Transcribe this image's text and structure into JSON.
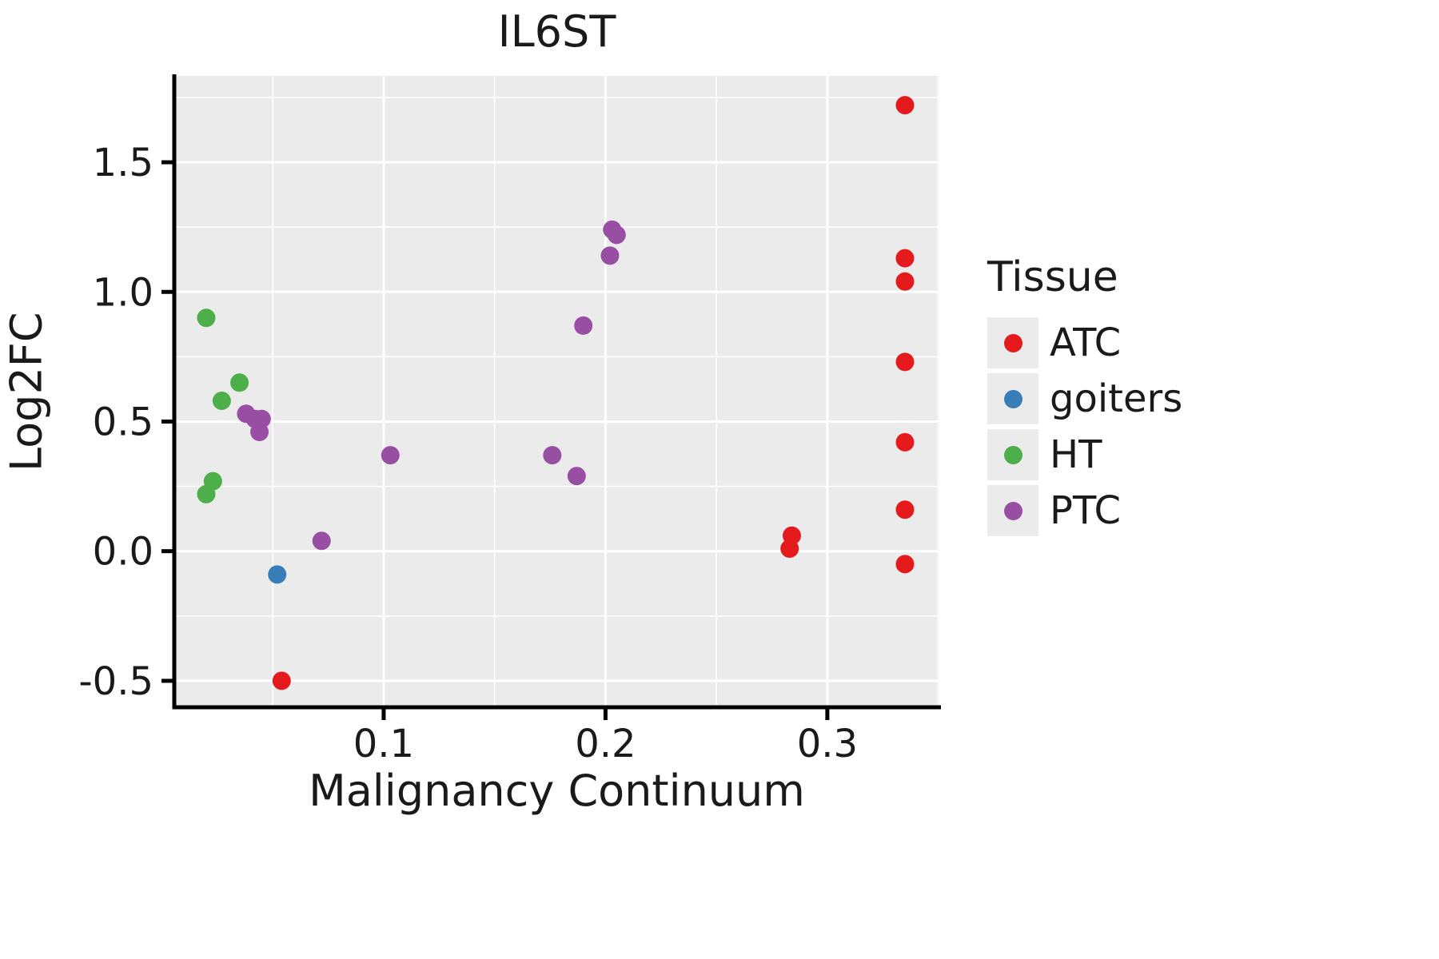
{
  "title": "IL6ST",
  "style": {
    "panel_bg": "#EBEBEB",
    "grid_color": "#FFFFFF",
    "axis_color": "#000000",
    "text_color": "#1A1A1A",
    "legend_key_bg": "#EBEBEB"
  },
  "chart_data": {
    "type": "scatter",
    "title": "IL6ST",
    "xlabel": "Malignancy Continuum",
    "ylabel": "Log2FC",
    "legend_title": "Tissue",
    "legend_position": "right",
    "grid": true,
    "xlim": [
      0.0056,
      0.3505
    ],
    "ylim": [
      -0.602,
      1.833
    ],
    "x_ticks": [
      0.1,
      0.2,
      0.3
    ],
    "y_ticks": [
      -0.5,
      0.0,
      0.5,
      1.0,
      1.5
    ],
    "x_minor_ticks": [
      0.05,
      0.15,
      0.25,
      0.35
    ],
    "y_minor_ticks": [
      -0.25,
      0.25,
      0.75,
      1.25,
      1.75
    ],
    "series": [
      {
        "name": "ATC",
        "color": "#E41A1C",
        "points": [
          [
            0.335,
            1.72
          ],
          [
            0.335,
            1.13
          ],
          [
            0.335,
            1.04
          ],
          [
            0.335,
            0.73
          ],
          [
            0.335,
            0.42
          ],
          [
            0.335,
            0.16
          ],
          [
            0.335,
            -0.05
          ],
          [
            0.284,
            0.06
          ],
          [
            0.283,
            0.01
          ],
          [
            0.054,
            -0.5
          ]
        ]
      },
      {
        "name": "goiters",
        "color": "#377EB8",
        "points": [
          [
            0.052,
            -0.09
          ]
        ]
      },
      {
        "name": "HT",
        "color": "#4DAF4A",
        "points": [
          [
            0.02,
            0.9
          ],
          [
            0.027,
            0.58
          ],
          [
            0.035,
            0.65
          ],
          [
            0.023,
            0.27
          ],
          [
            0.02,
            0.22
          ]
        ]
      },
      {
        "name": "PTC",
        "color": "#984EA3",
        "points": [
          [
            0.038,
            0.53
          ],
          [
            0.042,
            0.51
          ],
          [
            0.045,
            0.51
          ],
          [
            0.044,
            0.46
          ],
          [
            0.072,
            0.04
          ],
          [
            0.103,
            0.37
          ],
          [
            0.176,
            0.37
          ],
          [
            0.187,
            0.29
          ],
          [
            0.19,
            0.87
          ],
          [
            0.203,
            1.24
          ],
          [
            0.205,
            1.22
          ],
          [
            0.202,
            1.14
          ]
        ]
      }
    ]
  }
}
